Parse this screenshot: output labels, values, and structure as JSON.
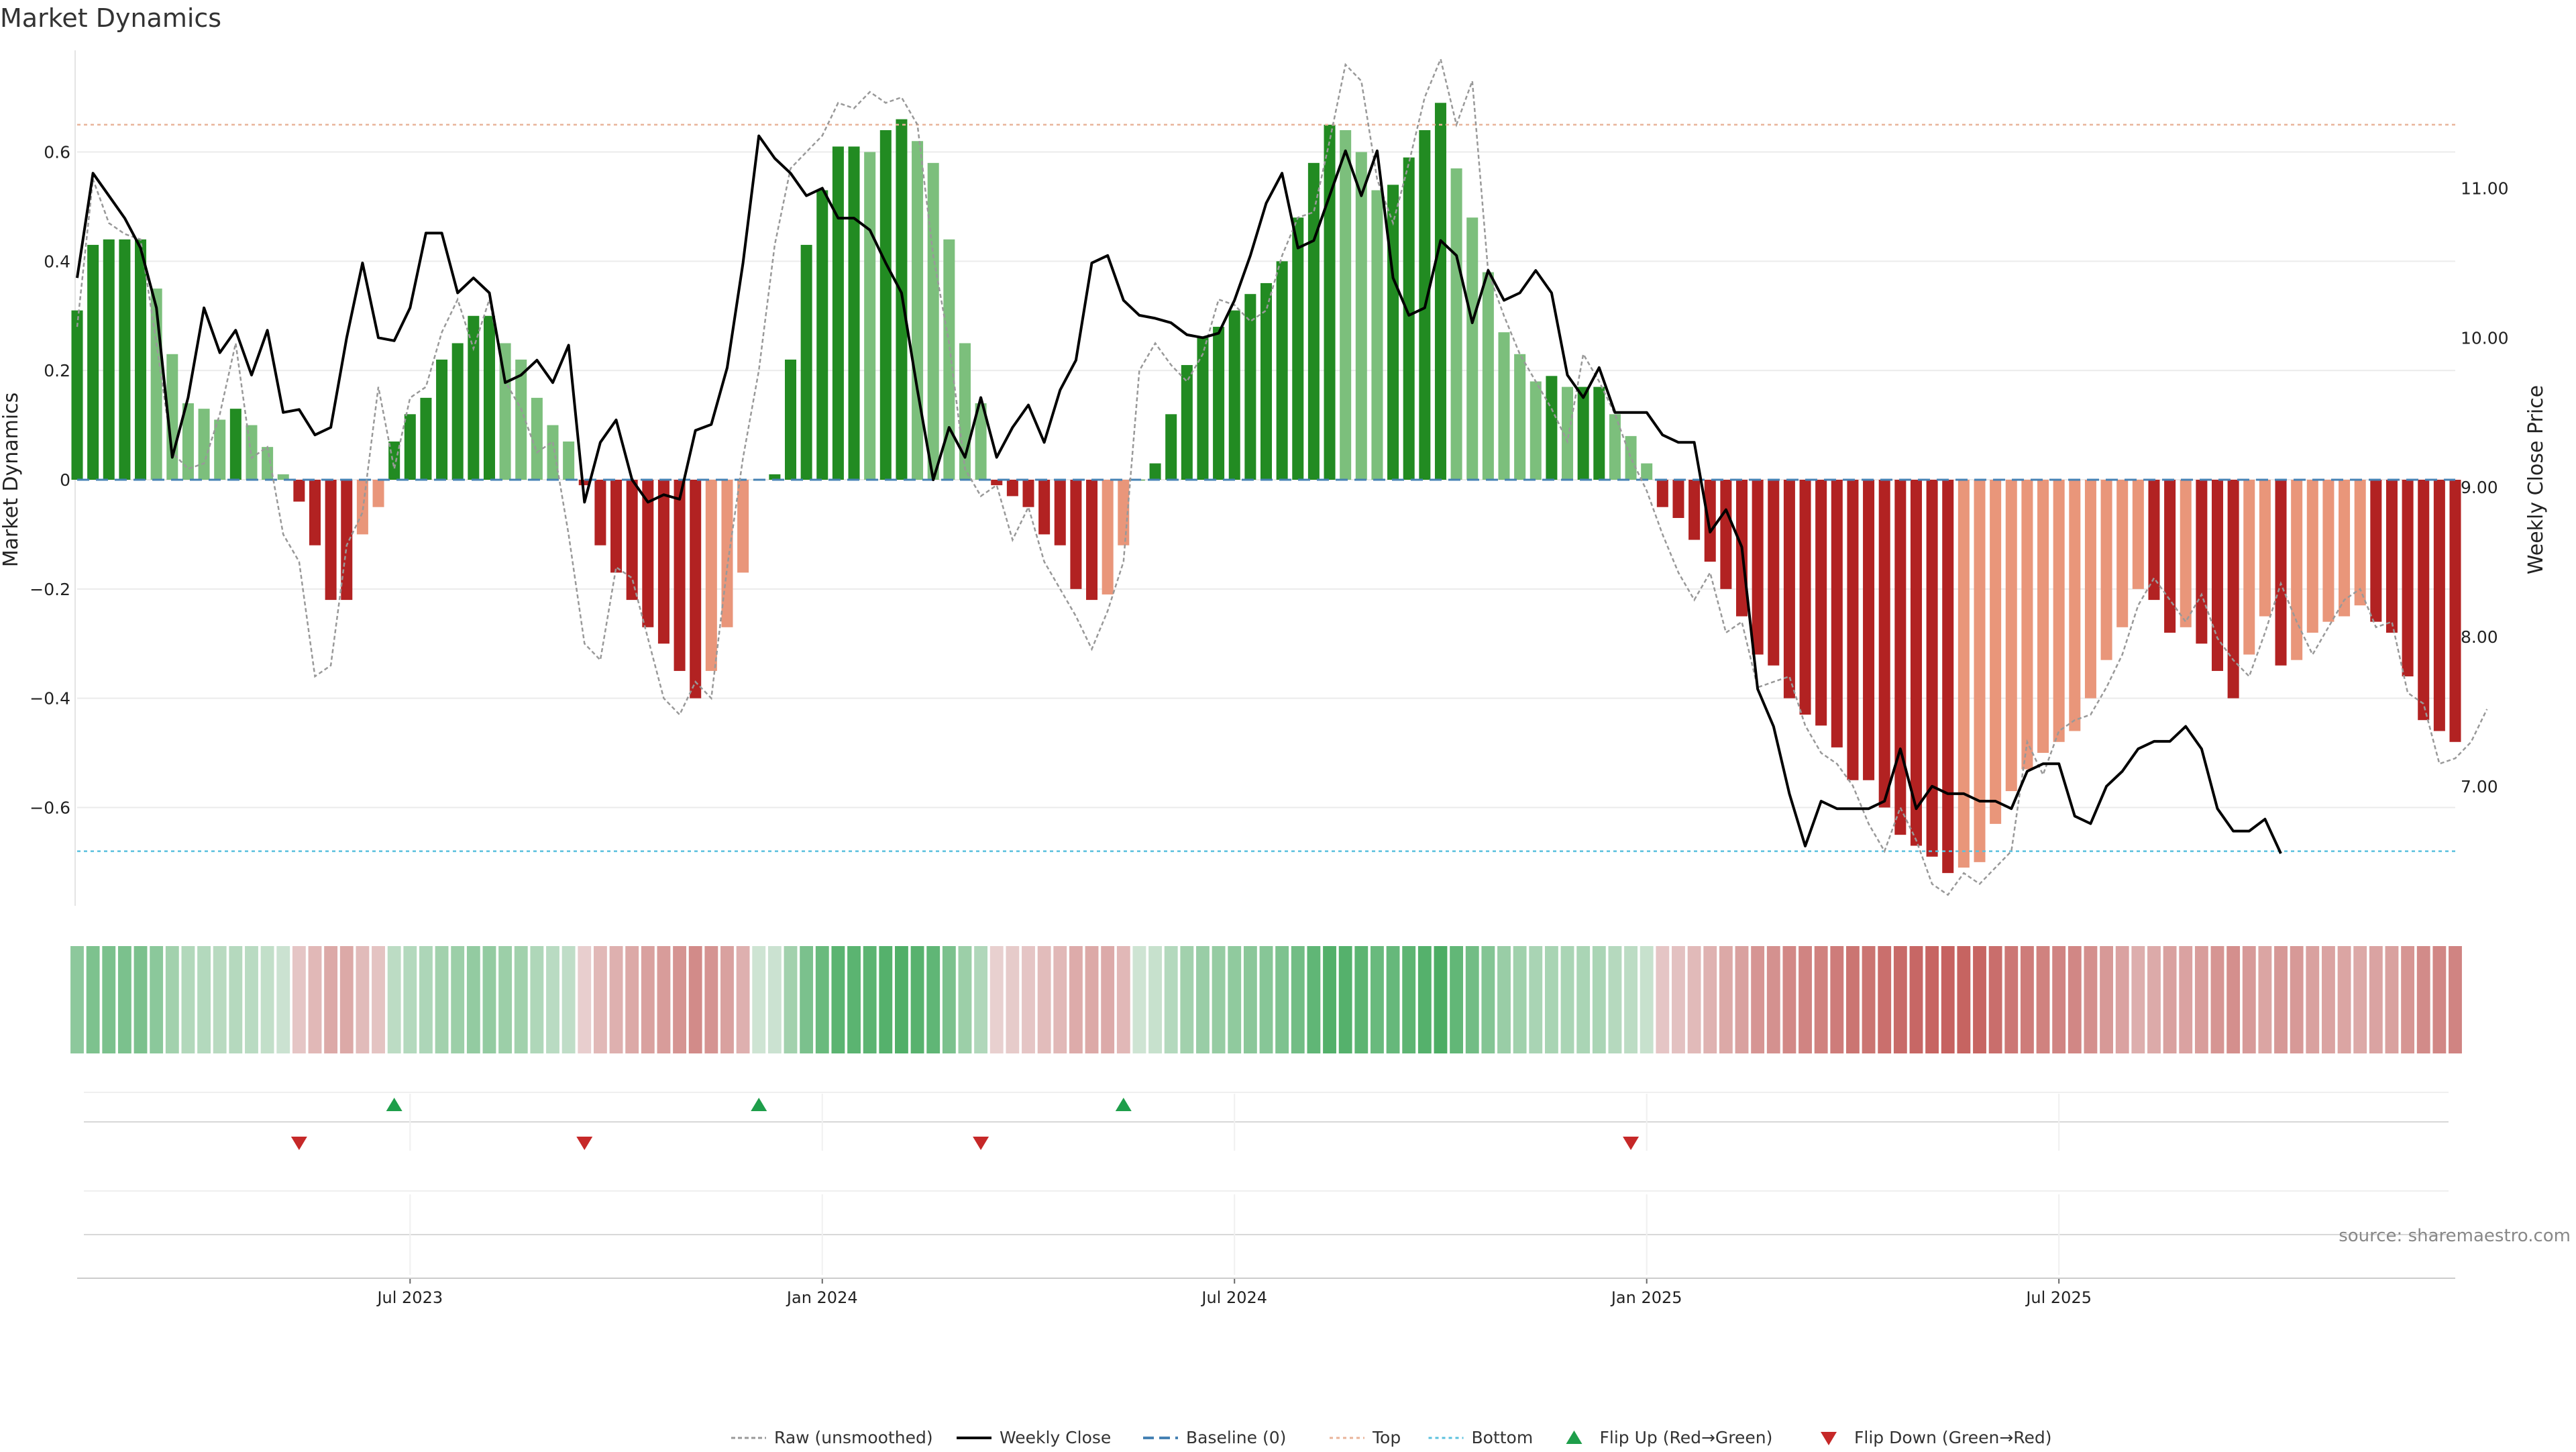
{
  "chart_data": {
    "type": "bar",
    "title": "Market Dynamics",
    "ylabel_left": "Market Dynamics",
    "ylabel_right": "Weekly Close Price",
    "source": "source: sharemaestro.com",
    "ylim_left": [
      -0.78,
      0.78
    ],
    "ylim_right": [
      6.2,
      11.9
    ],
    "yticks_left": [
      {
        "value": 0.6,
        "label": "0.6"
      },
      {
        "value": 0.4,
        "label": "0.4"
      },
      {
        "value": 0.2,
        "label": "0.2"
      },
      {
        "value": 0.0,
        "label": "0"
      },
      {
        "value": -0.2,
        "label": "−0.2"
      },
      {
        "value": -0.4,
        "label": "−0.4"
      },
      {
        "value": -0.6,
        "label": "−0.6"
      }
    ],
    "yticks_right": [
      {
        "value": 11.0,
        "label": "11.00"
      },
      {
        "value": 10.0,
        "label": "10.00"
      },
      {
        "value": 9.0,
        "label": "9.00"
      },
      {
        "value": 8.0,
        "label": "8.00"
      },
      {
        "value": 7.0,
        "label": "7.00"
      }
    ],
    "xticks": [
      {
        "index": 21,
        "label": "Jul 2023"
      },
      {
        "index": 47,
        "label": "Jan 2024"
      },
      {
        "index": 73,
        "label": "Jul 2024"
      },
      {
        "index": 99,
        "label": "Jan 2025"
      },
      {
        "index": 125,
        "label": "Jul 2025"
      }
    ],
    "top_level": 0.65,
    "bottom_level": -0.68,
    "baseline": 0,
    "bars": [
      0.31,
      0.43,
      0.44,
      0.44,
      0.44,
      0.35,
      0.23,
      0.14,
      0.13,
      0.11,
      0.13,
      0.1,
      0.06,
      0.01,
      -0.04,
      -0.12,
      -0.22,
      -0.22,
      -0.1,
      -0.05,
      0.07,
      0.12,
      0.15,
      0.22,
      0.25,
      0.3,
      0.3,
      0.25,
      0.22,
      0.15,
      0.1,
      0.07,
      -0.01,
      -0.12,
      -0.17,
      -0.22,
      -0.27,
      -0.3,
      -0.35,
      -0.4,
      -0.35,
      -0.27,
      -0.17,
      0.0,
      0.01,
      0.22,
      0.43,
      0.53,
      0.61,
      0.61,
      0.6,
      0.64,
      0.66,
      0.62,
      0.58,
      0.44,
      0.25,
      0.14,
      -0.01,
      -0.03,
      -0.05,
      -0.1,
      -0.12,
      -0.2,
      -0.22,
      -0.21,
      -0.12,
      0.0,
      0.03,
      0.12,
      0.21,
      0.26,
      0.28,
      0.31,
      0.34,
      0.36,
      0.4,
      0.48,
      0.58,
      0.65,
      0.64,
      0.6,
      0.53,
      0.54,
      0.59,
      0.64,
      0.69,
      0.57,
      0.48,
      0.38,
      0.27,
      0.23,
      0.18,
      0.19,
      0.17,
      0.17,
      0.17,
      0.12,
      0.08,
      0.03,
      -0.05,
      -0.07,
      -0.11,
      -0.15,
      -0.2,
      -0.25,
      -0.32,
      -0.34,
      -0.4,
      -0.43,
      -0.45,
      -0.49,
      -0.55,
      -0.55,
      -0.6,
      -0.65,
      -0.67,
      -0.69,
      -0.72,
      -0.71,
      -0.7,
      -0.63,
      -0.57,
      -0.53,
      -0.5,
      -0.48,
      -0.46,
      -0.4,
      -0.33,
      -0.27,
      -0.2,
      -0.22,
      -0.28,
      -0.27,
      -0.3,
      -0.35,
      -0.4,
      -0.32,
      -0.25,
      -0.34,
      -0.33,
      -0.28,
      -0.26,
      -0.25,
      -0.23,
      -0.26,
      -0.28,
      -0.36,
      -0.44,
      -0.46,
      -0.48
    ],
    "raw": [
      0.28,
      0.55,
      0.47,
      0.45,
      0.44,
      0.25,
      0.05,
      0.02,
      0.03,
      0.12,
      0.25,
      0.04,
      0.06,
      -0.1,
      -0.15,
      -0.36,
      -0.34,
      -0.12,
      -0.06,
      0.17,
      0.02,
      0.15,
      0.17,
      0.27,
      0.33,
      0.24,
      0.33,
      0.18,
      0.13,
      0.05,
      0.07,
      -0.1,
      -0.3,
      -0.33,
      -0.16,
      -0.18,
      -0.29,
      -0.4,
      -0.43,
      -0.37,
      -0.4,
      -0.16,
      0.04,
      0.2,
      0.43,
      0.57,
      0.6,
      0.63,
      0.69,
      0.68,
      0.71,
      0.69,
      0.7,
      0.65,
      0.41,
      0.25,
      0.02,
      -0.03,
      -0.01,
      -0.11,
      -0.05,
      -0.15,
      -0.2,
      -0.25,
      -0.31,
      -0.24,
      -0.15,
      0.2,
      0.25,
      0.21,
      0.18,
      0.23,
      0.33,
      0.32,
      0.29,
      0.31,
      0.41,
      0.48,
      0.49,
      0.62,
      0.76,
      0.73,
      0.55,
      0.47,
      0.58,
      0.7,
      0.77,
      0.65,
      0.73,
      0.38,
      0.3,
      0.23,
      0.18,
      0.13,
      0.07,
      0.23,
      0.18,
      0.12,
      0.04,
      -0.02,
      -0.1,
      -0.17,
      -0.22,
      -0.17,
      -0.28,
      -0.26,
      -0.38,
      -0.37,
      -0.36,
      -0.45,
      -0.5,
      -0.52,
      -0.56,
      -0.63,
      -0.68,
      -0.6,
      -0.66,
      -0.74,
      -0.76,
      -0.72,
      -0.74,
      -0.71,
      -0.68,
      -0.48,
      -0.54,
      -0.46,
      -0.44,
      -0.43,
      -0.38,
      -0.32,
      -0.23,
      -0.18,
      -0.22,
      -0.26,
      -0.21,
      -0.29,
      -0.33,
      -0.36,
      -0.28,
      -0.19,
      -0.26,
      -0.32,
      -0.27,
      -0.22,
      -0.2,
      -0.27,
      -0.26,
      -0.39,
      -0.41,
      -0.52,
      -0.51,
      -0.48,
      -0.42
    ],
    "close": [
      10.4,
      11.1,
      10.95,
      10.8,
      10.6,
      10.2,
      9.2,
      9.6,
      10.2,
      9.9,
      10.05,
      9.75,
      10.05,
      9.5,
      9.52,
      9.35,
      9.4,
      10.0,
      10.5,
      10.0,
      9.98,
      10.2,
      10.7,
      10.7,
      10.3,
      10.4,
      10.3,
      9.7,
      9.75,
      9.85,
      9.7,
      9.95,
      8.9,
      9.3,
      9.45,
      9.05,
      8.9,
      8.95,
      8.92,
      9.38,
      9.42,
      9.8,
      10.5,
      11.35,
      11.2,
      11.1,
      10.95,
      11.0,
      10.8,
      10.8,
      10.72,
      10.5,
      10.3,
      9.65,
      9.05,
      9.4,
      9.2,
      9.6,
      9.2,
      9.4,
      9.55,
      9.3,
      9.65,
      9.85,
      10.5,
      10.55,
      10.25,
      10.15,
      10.13,
      10.1,
      10.02,
      10.0,
      10.03,
      10.25,
      10.55,
      10.9,
      11.1,
      10.6,
      10.65,
      10.95,
      11.25,
      10.95,
      11.25,
      10.4,
      10.15,
      10.2,
      10.65,
      10.55,
      10.1,
      10.45,
      10.25,
      10.3,
      10.45,
      10.3,
      9.75,
      9.6,
      9.8,
      9.5,
      9.5,
      9.5,
      9.35,
      9.3,
      9.3,
      8.7,
      8.85,
      8.6,
      7.65,
      7.4,
      6.95,
      6.6,
      6.9,
      6.85,
      6.85,
      6.85,
      6.9,
      7.25,
      6.85,
      7.0,
      6.95,
      6.95,
      6.9,
      6.9,
      6.85,
      7.1,
      7.15,
      7.15,
      6.8,
      6.75,
      7.0,
      7.1,
      7.25,
      7.3,
      7.3,
      7.4,
      7.25,
      6.85,
      6.7,
      6.7,
      6.78,
      6.55
    ],
    "heatmap_values": [
      0.44,
      0.55,
      0.56,
      0.56,
      0.56,
      0.45,
      0.3,
      0.19,
      0.18,
      0.15,
      0.17,
      0.14,
      0.08,
      0.02,
      -0.1,
      -0.2,
      -0.32,
      -0.32,
      -0.18,
      -0.12,
      0.12,
      0.18,
      0.22,
      0.3,
      0.34,
      0.4,
      0.4,
      0.34,
      0.3,
      0.21,
      0.14,
      0.1,
      -0.03,
      -0.2,
      -0.26,
      -0.32,
      -0.38,
      -0.42,
      -0.48,
      -0.55,
      -0.48,
      -0.38,
      -0.26,
      0.0,
      0.02,
      0.3,
      0.56,
      0.68,
      0.78,
      0.78,
      0.77,
      0.82,
      0.85,
      0.8,
      0.74,
      0.56,
      0.34,
      0.2,
      -0.02,
      -0.06,
      -0.1,
      -0.17,
      -0.2,
      -0.3,
      -0.32,
      -0.31,
      -0.2,
      0.0,
      0.05,
      0.18,
      0.3,
      0.36,
      0.38,
      0.42,
      0.46,
      0.48,
      0.54,
      0.62,
      0.74,
      0.83,
      0.82,
      0.77,
      0.68,
      0.7,
      0.76,
      0.82,
      0.88,
      0.73,
      0.62,
      0.5,
      0.36,
      0.31,
      0.25,
      0.26,
      0.24,
      0.24,
      0.24,
      0.17,
      0.12,
      0.05,
      -0.1,
      -0.13,
      -0.19,
      -0.25,
      -0.32,
      -0.38,
      -0.47,
      -0.5,
      -0.57,
      -0.6,
      -0.62,
      -0.66,
      -0.72,
      -0.72,
      -0.76,
      -0.8,
      -0.82,
      -0.84,
      -0.86,
      -0.85,
      -0.84,
      -0.77,
      -0.7,
      -0.66,
      -0.62,
      -0.6,
      -0.58,
      -0.52,
      -0.44,
      -0.37,
      -0.28,
      -0.31,
      -0.38,
      -0.37,
      -0.41,
      -0.47,
      -0.52,
      -0.43,
      -0.35,
      -0.45,
      -0.44,
      -0.38,
      -0.36,
      -0.35,
      -0.32,
      -0.36,
      -0.38,
      -0.47,
      -0.55,
      -0.58,
      -0.6
    ],
    "flips_up": [
      20,
      43,
      66
    ],
    "flips_down": [
      14,
      32,
      57,
      98
    ],
    "legend": [
      {
        "key": "raw",
        "label": "Raw (unsmoothed)"
      },
      {
        "key": "close",
        "label": "Weekly Close"
      },
      {
        "key": "baseline",
        "label": "Baseline (0)"
      },
      {
        "key": "top",
        "label": "Top"
      },
      {
        "key": "bottom",
        "label": "Bottom"
      },
      {
        "key": "flip_up",
        "label": "Flip Up (Red→Green)"
      },
      {
        "key": "flip_down",
        "label": "Flip Down (Green→Red)"
      }
    ],
    "colors": {
      "strong_green": "#228B22",
      "light_green": "#7CBF7C",
      "strong_red": "#B22222",
      "light_red": "#E9967A",
      "raw_line": "#999999",
      "close_line": "#000000",
      "baseline": "#4682B4",
      "top": "#E9B49A",
      "bottom": "#5BC0DE",
      "flip_up": "#1E9E4A",
      "flip_down": "#C62828",
      "grid": "#EBEBEB"
    }
  }
}
